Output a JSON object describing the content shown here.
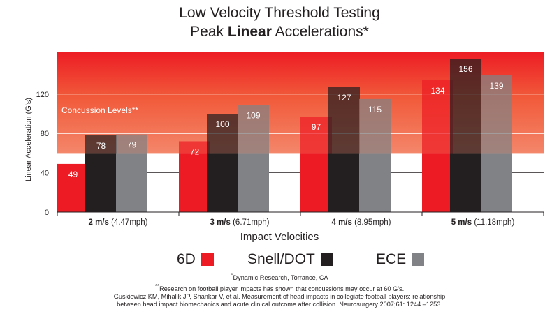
{
  "title_line1": "Low Velocity Threshold Testing",
  "title_line2_pre": "Peak ",
  "title_line2_bold": "Linear",
  "title_line2_post": " Accelerations*",
  "x_axis_title": "Impact Velocities",
  "concussion_label": "Concussion Levels**",
  "footnote_1_mark": "*",
  "footnote_1": "Dynamic Research, Torrance, CA",
  "footnote_2_mark": "**",
  "footnote_2": "Research on football player impacts has shown that concussions may occur at 60 G's.",
  "footnote_3": "Guskiewicz KM, Mihalik JP, Shankar V, et al. Measurement of head impacts in collegiate football players: relationship",
  "footnote_4": "between head impact biomechanics and acute clinical outcome after collision. Neurosurgery 2007;61: 1244 –1253.",
  "colors": {
    "6D": "#ed1c24",
    "Snell/DOT": "#231f20",
    "ECE": "#808285",
    "band_light": "#f4866a",
    "band_dark": "#ed1c24"
  },
  "chart_data": {
    "type": "bar",
    "ylabel": "Linear Acceleration (G's)",
    "xlabel": "Impact Velocities",
    "ylim": [
      0,
      160
    ],
    "yticks": [
      0,
      40,
      80,
      120
    ],
    "concussion_threshold": 60,
    "categories": [
      {
        "bold": "2 m/s",
        "rest": " (4.47mph)"
      },
      {
        "bold": "3 m/s",
        "rest": " (6.71mph)"
      },
      {
        "bold": "4 m/s",
        "rest": " (8.95mph)"
      },
      {
        "bold": "5 m/s",
        "rest": " (11.18mph)"
      }
    ],
    "series": [
      {
        "name": "6D",
        "values": [
          49,
          72,
          97,
          134
        ]
      },
      {
        "name": "Snell/DOT",
        "values": [
          78,
          100,
          127,
          156
        ]
      },
      {
        "name": "ECE",
        "values": [
          79,
          109,
          115,
          139
        ]
      }
    ],
    "legend_position": "bottom"
  }
}
